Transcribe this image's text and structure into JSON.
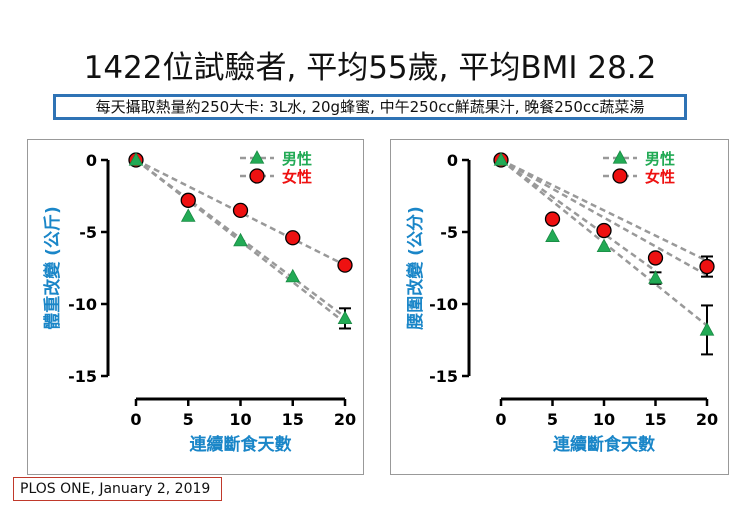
{
  "title": "1422位試驗者, 平均55歲, 平均BMI 28.2",
  "subtitle": "每天攝取熱量約250大卡: 3L水, 20g蜂蜜, 中午250cc鮮蔬果汁, 晚餐250cc蔬菜湯",
  "citation": "PLOS ONE, January 2, 2019",
  "colors": {
    "male": "#22aa55",
    "female": "#ee1111",
    "axis_label": "#1a86c8",
    "fit_line": "#999999"
  },
  "chart_data": [
    {
      "type": "scatter",
      "ylabel": "體重改變 (公斤)",
      "xlabel": "連續斷食天數",
      "xlim": [
        0,
        20
      ],
      "ylim": [
        -15,
        0
      ],
      "xticks": [
        "0",
        "5",
        "10",
        "15",
        "20"
      ],
      "yticks": [
        "0",
        "-5",
        "-10",
        "-15"
      ],
      "legend_position": "top-right",
      "series": [
        {
          "name": "男性",
          "marker": "triangle",
          "x": [
            0,
            5,
            10,
            15,
            20
          ],
          "y": [
            0,
            -3.9,
            -5.6,
            -8.1,
            -11.0
          ],
          "error": [
            0,
            0,
            0,
            0,
            0.7
          ]
        },
        {
          "name": "女性",
          "marker": "circle",
          "x": [
            0,
            5,
            10,
            15,
            20
          ],
          "y": [
            0,
            -2.8,
            -3.5,
            -5.4,
            -7.3
          ],
          "error": [
            0,
            0,
            0,
            0,
            0
          ]
        }
      ],
      "fit_lines": [
        {
          "x": [
            0,
            20
          ],
          "y": [
            0,
            -7.3
          ]
        },
        {
          "x": [
            0,
            20
          ],
          "y": [
            0,
            -10.9
          ]
        },
        {
          "x": [
            0,
            20
          ],
          "y": [
            0,
            -11.3
          ]
        }
      ]
    },
    {
      "type": "scatter",
      "ylabel": "腰圍改變 (公分)",
      "xlabel": "連續斷食天數",
      "xlim": [
        0,
        20
      ],
      "ylim": [
        -15,
        0
      ],
      "xticks": [
        "0",
        "5",
        "10",
        "15",
        "20"
      ],
      "yticks": [
        "0",
        "-5",
        "-10",
        "-15"
      ],
      "legend_position": "top-right",
      "series": [
        {
          "name": "男性",
          "marker": "triangle",
          "x": [
            0,
            5,
            10,
            15,
            20
          ],
          "y": [
            0,
            -5.3,
            -6.0,
            -8.2,
            -11.8
          ],
          "error": [
            0,
            0,
            0,
            0.4,
            1.7
          ]
        },
        {
          "name": "女性",
          "marker": "circle",
          "x": [
            0,
            5,
            10,
            15,
            20
          ],
          "y": [
            0,
            -4.1,
            -4.9,
            -6.8,
            -7.4
          ],
          "error": [
            0,
            0,
            0,
            0,
            0.7
          ]
        }
      ],
      "fit_lines": [
        {
          "x": [
            0,
            20
          ],
          "y": [
            0,
            -7.0
          ]
        },
        {
          "x": [
            0,
            20
          ],
          "y": [
            0,
            -8.0
          ]
        },
        {
          "x": [
            0,
            15
          ],
          "y": [
            0,
            -7.7
          ]
        },
        {
          "x": [
            0,
            20
          ],
          "y": [
            0,
            -11.5
          ]
        }
      ]
    }
  ]
}
